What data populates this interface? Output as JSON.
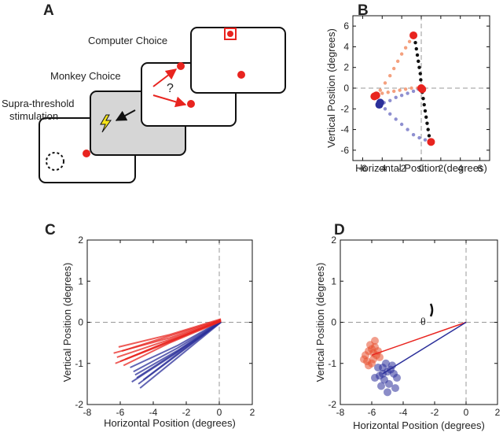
{
  "panel_a": {
    "label": "A",
    "computer_choice": "Computer Choice",
    "monkey_choice": "Monkey Choice",
    "stimulation_lines": [
      "Supra-threshold",
      "stimulation"
    ],
    "question": "?"
  },
  "chart_data": [
    {
      "type": "scatter",
      "panel_label": "B",
      "x_label": "Horizontal Position (degrees)",
      "y_label": "Vertical Position (degrees)",
      "xlim": [
        -7,
        7
      ],
      "ylim": [
        -7,
        7
      ],
      "xticks": [
        -6,
        -4,
        -2,
        0,
        2,
        4,
        6
      ],
      "yticks": [
        -6,
        -4,
        -2,
        0,
        2,
        4,
        6
      ],
      "zero_lines": {
        "x": 0,
        "y": 0
      },
      "series": [
        {
          "color": "#111111",
          "marker": "small",
          "x": [
            -0.6,
            -0.5,
            -0.4,
            -0.3,
            -0.2,
            -0.1,
            -0.05,
            0.1,
            0.2,
            0.3,
            0.4,
            0.5,
            0.6,
            0.7,
            0.8
          ],
          "y": [
            4.4,
            3.8,
            3.2,
            2.6,
            2.0,
            1.4,
            0.8,
            -0.4,
            -1.0,
            -1.6,
            -2.2,
            -2.8,
            -3.4,
            -4.0,
            -4.6
          ]
        },
        {
          "color": "#f4a07e",
          "marker": "small",
          "x": [
            -4.2,
            -3.7,
            -3.2,
            -2.8,
            -2.4,
            -2.0,
            -1.6,
            -1.2,
            -4.0,
            -3.4,
            -2.8,
            -2.2,
            -1.6,
            -1.0,
            -0.4
          ],
          "y": [
            -0.2,
            0.5,
            1.2,
            1.9,
            2.6,
            3.3,
            3.9,
            4.5,
            -0.5,
            -0.4,
            -0.3,
            -0.2,
            -0.1,
            0,
            0
          ]
        },
        {
          "color": "#8e8fd0",
          "marker": "small",
          "x": [
            -3.8,
            -3.2,
            -2.6,
            -2.0,
            -1.4,
            -0.8,
            -0.3,
            -3.7,
            -3.2,
            -2.6,
            -2.0,
            -1.4,
            -0.8,
            -0.2,
            0.4
          ],
          "y": [
            -1.4,
            -1.2,
            -0.9,
            -0.7,
            -0.5,
            -0.3,
            -0.1,
            -2.0,
            -2.5,
            -3.0,
            -3.5,
            -4.0,
            -4.5,
            -4.8,
            -5.0
          ]
        },
        {
          "color": "#e8241f",
          "marker": "large",
          "x": [
            -0.8,
            1.0,
            -4.8,
            -4.6,
            0,
            0.1
          ],
          "y": [
            5.1,
            -5.2,
            -0.8,
            -0.7,
            0,
            -0.1
          ]
        },
        {
          "color": "#2b2f9a",
          "marker": "large",
          "x": [
            -4.3,
            -4.2
          ],
          "y": [
            -1.6,
            -1.4
          ]
        }
      ]
    },
    {
      "type": "line",
      "panel_label": "C",
      "x_label": "Horizontal Position (degrees)",
      "y_label": "Vertical Position (degrees)",
      "xlim": [
        -8,
        2
      ],
      "ylim": [
        -2,
        2
      ],
      "xticks": [
        -8,
        -6,
        -4,
        -2,
        0,
        2
      ],
      "yticks": [
        -2,
        -1,
        0,
        1,
        2
      ],
      "zero_lines": {
        "x": 0,
        "y": 0
      },
      "series": [
        {
          "color": "#2b2f9a",
          "x": [
            -5.2,
            -2.5,
            0.1
          ],
          "y": [
            -1.2,
            -0.62,
            0.02
          ]
        },
        {
          "color": "#2b2f9a",
          "x": [
            -5.0,
            -2.5,
            0.1
          ],
          "y": [
            -1.35,
            -0.7,
            0.0
          ]
        },
        {
          "color": "#2b2f9a",
          "x": [
            -4.9,
            -2.5,
            0.1
          ],
          "y": [
            -1.5,
            -0.78,
            0.01
          ]
        },
        {
          "color": "#2b2f9a",
          "x": [
            -5.4,
            -2.5,
            0.1
          ],
          "y": [
            -1.1,
            -0.56,
            0.03
          ]
        },
        {
          "color": "#2b2f9a",
          "x": [
            -4.8,
            -2.5,
            0.1
          ],
          "y": [
            -1.6,
            -0.85,
            0.0
          ]
        },
        {
          "color": "#2b2f9a",
          "x": [
            -5.1,
            -2.5,
            0.1
          ],
          "y": [
            -1.28,
            -0.68,
            0.02
          ]
        },
        {
          "color": "#2b2f9a",
          "x": [
            -4.6,
            -2.5,
            0.1
          ],
          "y": [
            -1.4,
            -0.76,
            0.01
          ]
        },
        {
          "color": "#2b2f9a",
          "x": [
            -5.3,
            -2.5,
            0.1
          ],
          "y": [
            -1.45,
            -0.72,
            0.0
          ]
        },
        {
          "color": "#e8241f",
          "x": [
            -6.4,
            -3,
            0.1
          ],
          "y": [
            -0.75,
            -0.38,
            0.05
          ]
        },
        {
          "color": "#e8241f",
          "x": [
            -6.2,
            -3,
            0.1
          ],
          "y": [
            -0.85,
            -0.42,
            0.04
          ]
        },
        {
          "color": "#e8241f",
          "x": [
            -6.0,
            -3,
            0.1
          ],
          "y": [
            -0.95,
            -0.45,
            0.03
          ]
        },
        {
          "color": "#e8241f",
          "x": [
            -5.9,
            -3,
            0.1
          ],
          "y": [
            -0.7,
            -0.33,
            0.06
          ]
        },
        {
          "color": "#e8241f",
          "x": [
            -5.8,
            -3,
            0.1
          ],
          "y": [
            -1.05,
            -0.5,
            0.02
          ]
        },
        {
          "color": "#e8241f",
          "x": [
            -6.1,
            -3,
            0.1
          ],
          "y": [
            -0.6,
            -0.3,
            0.08
          ]
        },
        {
          "color": "#e8241f",
          "x": [
            -5.7,
            -3,
            0.1
          ],
          "y": [
            -0.9,
            -0.46,
            0.03
          ]
        },
        {
          "color": "#e8241f",
          "x": [
            -6.3,
            -3,
            0.1
          ],
          "y": [
            -1.0,
            -0.48,
            0.05
          ]
        }
      ]
    },
    {
      "type": "scatter",
      "panel_label": "D",
      "x_label": "Horizontal Position (degrees)",
      "y_label": "Vertical Position (degrees)",
      "xlim": [
        -8,
        2
      ],
      "ylim": [
        -2,
        2
      ],
      "xticks": [
        -8,
        -6,
        -4,
        -2,
        0,
        2
      ],
      "yticks": [
        -2,
        -1,
        0,
        1,
        2
      ],
      "zero_lines": {
        "x": 0,
        "y": 0
      },
      "annotation": "θ",
      "opacity": 0.55,
      "series": [
        {
          "color": "#e8502f",
          "marker": "large",
          "x": [
            -6.2,
            -5.9,
            -6.4,
            -5.8,
            -6.0,
            -5.7,
            -6.3,
            -6.1,
            -5.6,
            -6.5,
            -5.9,
            -6.0,
            -5.5,
            -6.2,
            -5.8
          ],
          "y": [
            -0.7,
            -0.9,
            -0.8,
            -0.6,
            -1.0,
            -0.8,
            -0.95,
            -0.55,
            -0.7,
            -0.9,
            -0.75,
            -0.65,
            -0.85,
            -1.05,
            -0.45
          ]
        },
        {
          "color": "#2b2f9a",
          "marker": "large",
          "x": [
            -5.3,
            -5.0,
            -5.5,
            -4.8,
            -5.2,
            -4.6,
            -5.6,
            -4.9,
            -5.1,
            -4.4,
            -5.4,
            -4.7,
            -5.0,
            -5.8,
            -4.5,
            -5.3
          ],
          "y": [
            -1.1,
            -1.2,
            -1.3,
            -1.15,
            -1.4,
            -1.25,
            -1.1,
            -1.5,
            -1.0,
            -1.35,
            -1.55,
            -1.05,
            -1.7,
            -1.35,
            -1.6,
            -1.25
          ]
        },
        {
          "color": "#e8241f",
          "kind": "line",
          "x": [
            -6.0,
            0
          ],
          "y": [
            -0.8,
            0
          ]
        },
        {
          "color": "#2b2f9a",
          "kind": "line",
          "x": [
            -5.3,
            0
          ],
          "y": [
            -1.25,
            0
          ]
        }
      ]
    }
  ]
}
